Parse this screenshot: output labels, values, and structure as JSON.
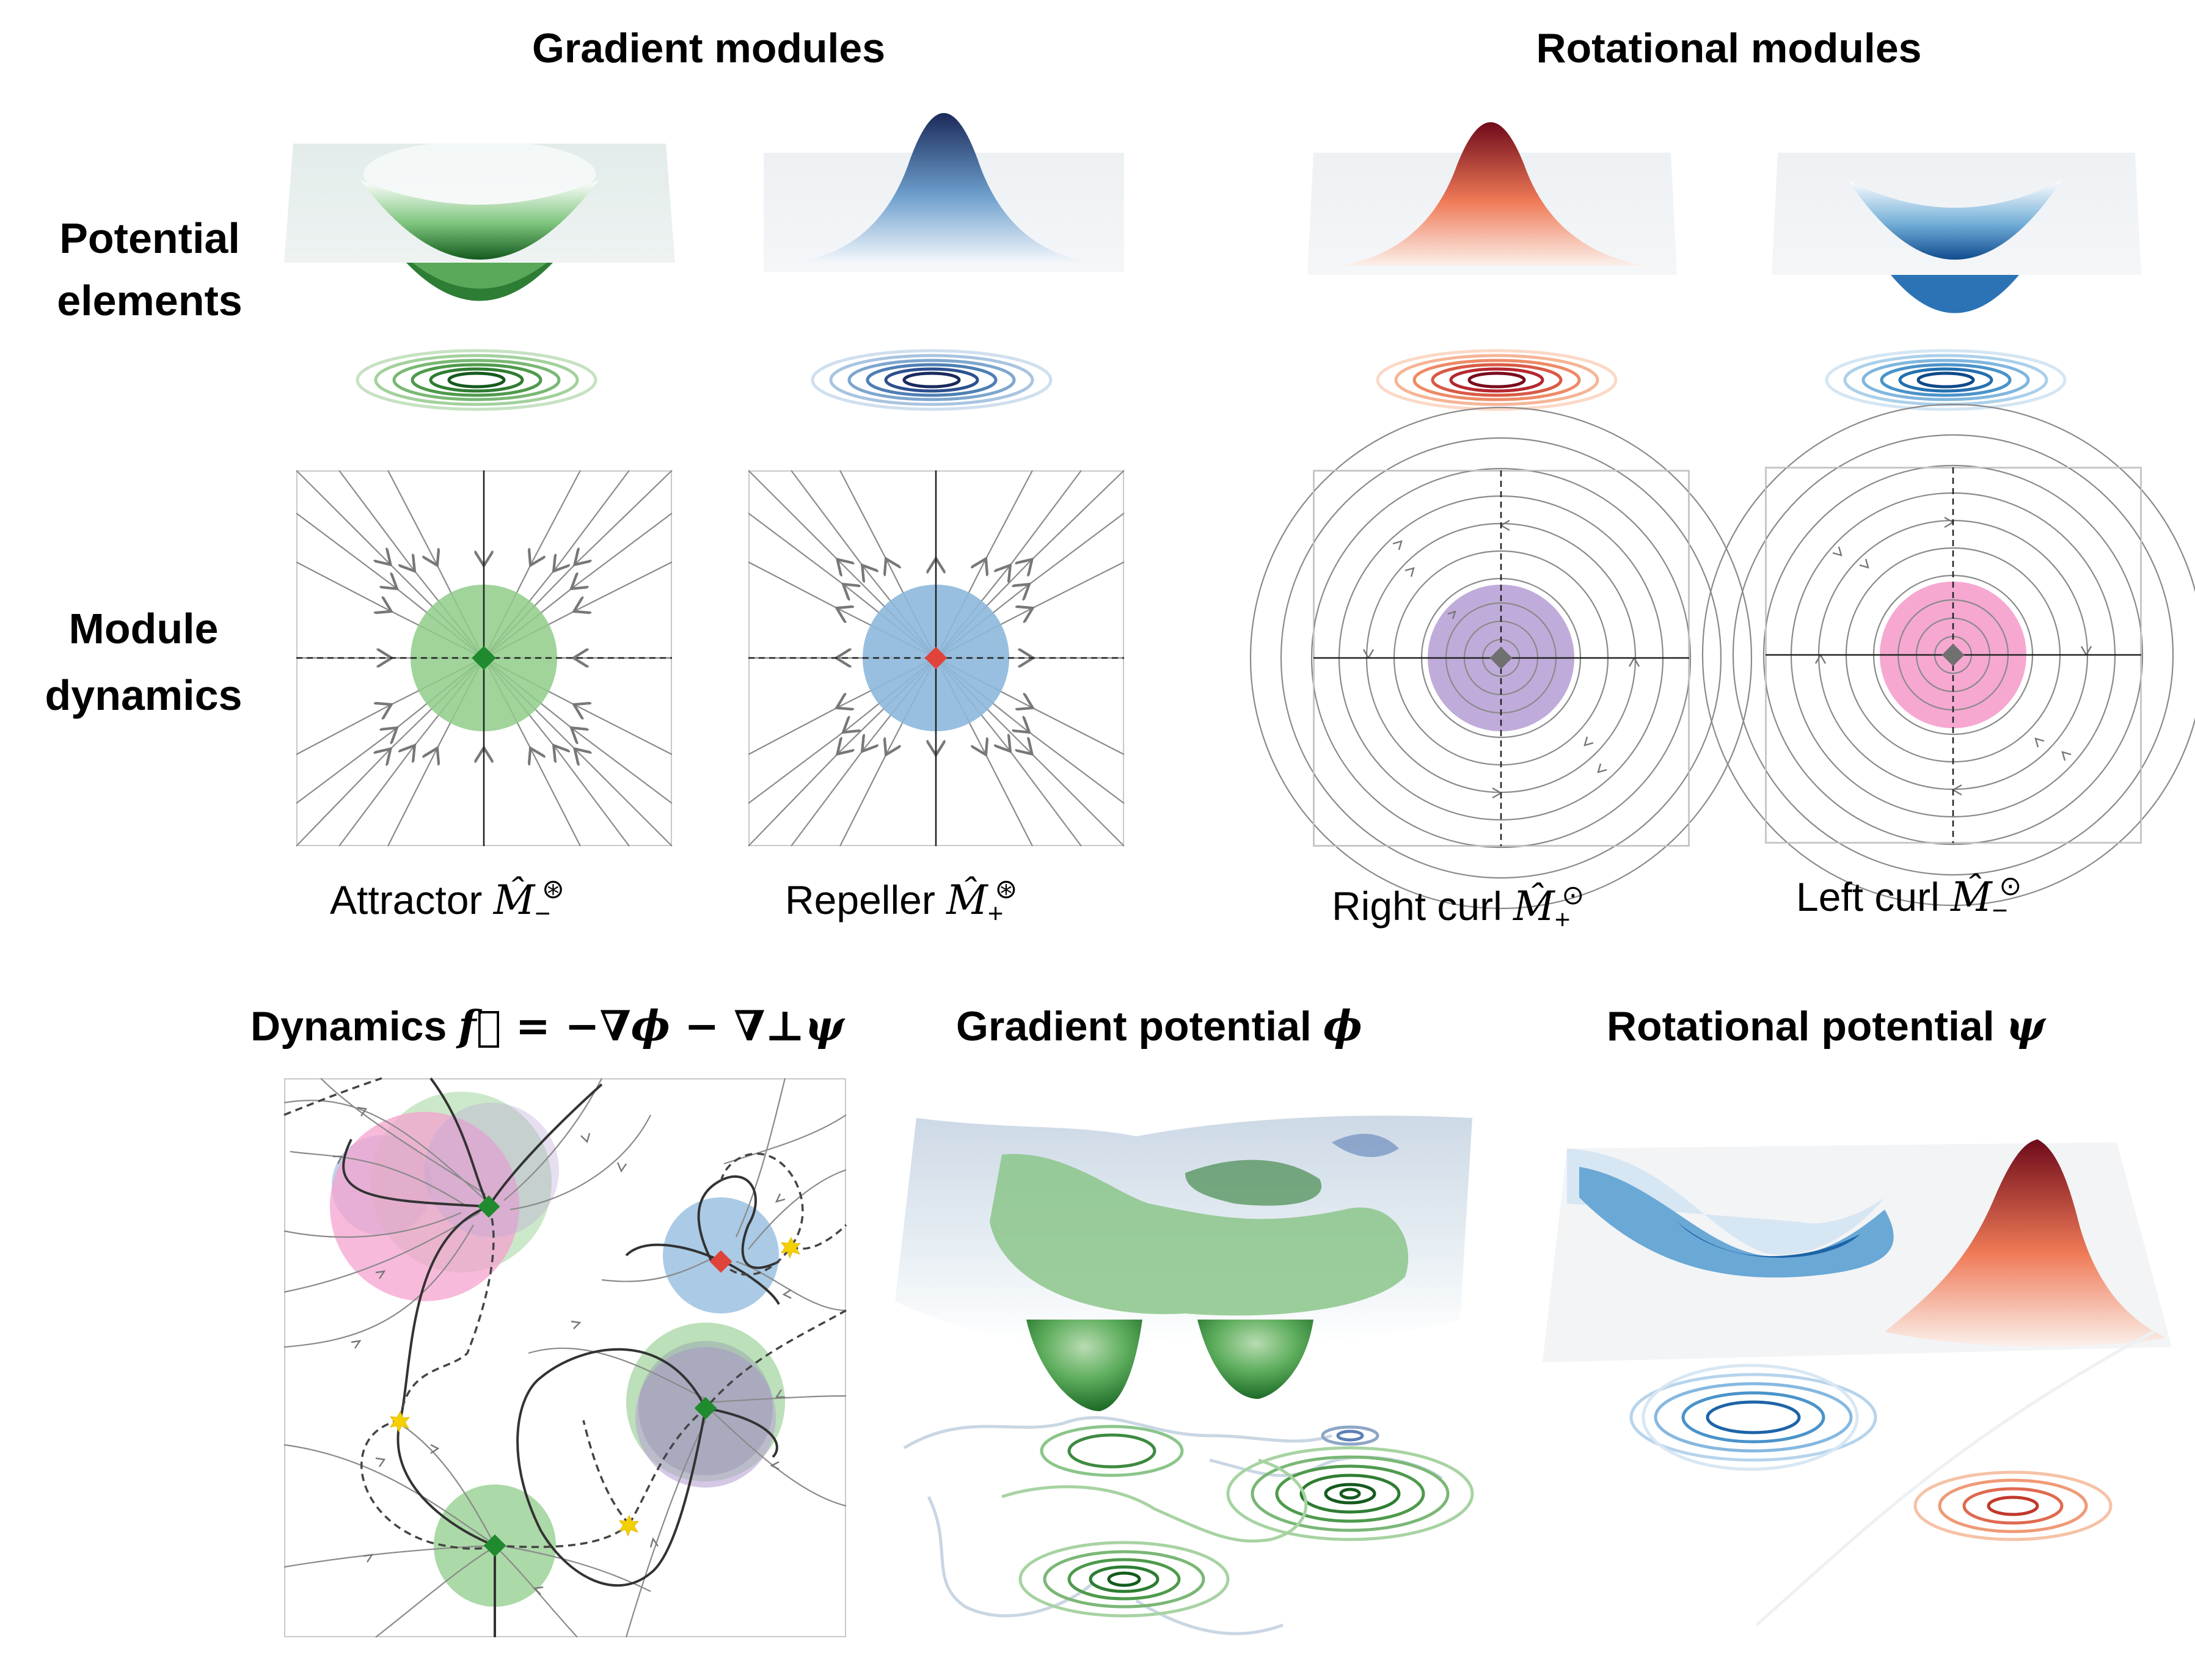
{
  "headers": {
    "gradient": "Gradient modules",
    "rotational": "Rotational modules"
  },
  "row_labels": {
    "potential_1": "Potential",
    "potential_2": "elements",
    "dynamics_1": "Module",
    "dynamics_2": "dynamics"
  },
  "captions": {
    "attractor": {
      "name": "Attractor",
      "sym": "M̂",
      "sub": "−",
      "sup": "⊛"
    },
    "repeller": {
      "name": "Repeller",
      "sym": "M̂",
      "sub": "+",
      "sup": "⊛"
    },
    "right_curl": {
      "name": "Right curl",
      "sym": "M̂",
      "sub": "+",
      "sup": "⊙"
    },
    "left_curl": {
      "name": "Left curl",
      "sym": "M̂",
      "sub": "−",
      "sup": "⊙"
    }
  },
  "bottom_titles": {
    "dynamics_word": "Dynamics",
    "dynamics_eq": "f⃗ = −∇ϕ − ∇⊥ψ",
    "gradient_word": "Gradient potential",
    "gradient_sym": "ϕ",
    "rotational_word": "Rotational potential",
    "rotational_sym": "ψ"
  },
  "colors": {
    "attractor_green": "#1f7a2e",
    "repeller_blue": "#2b5f9e",
    "rot_red": "#b2182b",
    "rot_blue": "#2166ac",
    "fill_green": "#8fcc8a",
    "fill_blue": "#8db8dc",
    "fill_purple": "#b9a3d6",
    "fill_pink": "#f5a3cf",
    "marker_green": "#1f8a2e",
    "marker_red": "#e0433a",
    "marker_gray": "#707070",
    "saddle_yellow": "#f5d000"
  }
}
